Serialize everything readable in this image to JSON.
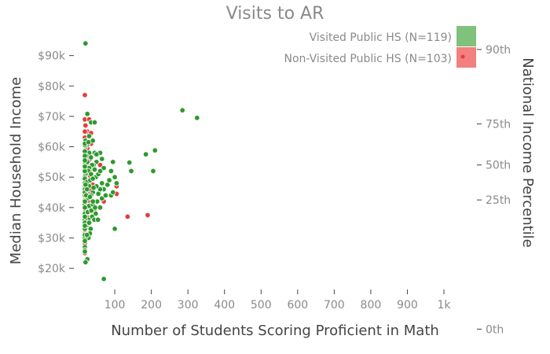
{
  "chart_data": {
    "type": "scatter",
    "title": "Visits to AR",
    "xlabel": "Number of Students Scoring Proficient in Math",
    "ylabel": "Median Household Income",
    "y2label": "National Income Percentile",
    "xlim": [
      -20,
      1000
    ],
    "ylim": [
      12000,
      100000
    ],
    "x_ticks": [
      100,
      200,
      300,
      400,
      500,
      600,
      700,
      800,
      900,
      1000
    ],
    "x_tick_labels": [
      "100",
      "200",
      "300",
      "400",
      "500",
      "600",
      "700",
      "800",
      "900",
      "1k"
    ],
    "y_ticks": [
      20000,
      30000,
      40000,
      50000,
      60000,
      70000,
      80000,
      90000
    ],
    "y_tick_labels": [
      "$20k",
      "$30k",
      "$40k",
      "$50k",
      "$60k",
      "$70k",
      "$80k",
      "$90k"
    ],
    "y2_ticks": [
      0,
      25,
      50,
      75,
      90
    ],
    "y2_tick_values": [
      0,
      42500,
      54000,
      67500,
      92000
    ],
    "y2_tick_labels": [
      "0th",
      "25th",
      "50th",
      "75th",
      "90th"
    ],
    "grid": false,
    "legend_position": "top-right",
    "series": [
      {
        "name": "Visited Public HS (N=119)",
        "color": "#2e9a2e",
        "legend_color": "#80c17c",
        "points": [
          [
            20,
            94000
          ],
          [
            25,
            70800
          ],
          [
            35,
            68000
          ],
          [
            45,
            68000
          ],
          [
            30,
            63500
          ],
          [
            20,
            62000
          ],
          [
            25,
            60700
          ],
          [
            5,
            60500
          ],
          [
            15,
            61000
          ],
          [
            40,
            62000
          ],
          [
            60,
            58000
          ],
          [
            65,
            56000
          ],
          [
            45,
            58000
          ],
          [
            30,
            58000
          ],
          [
            22,
            57000
          ],
          [
            18,
            58500
          ],
          [
            10,
            57000
          ],
          [
            8,
            55000
          ],
          [
            50,
            55000
          ],
          [
            42,
            54000
          ],
          [
            38,
            54000
          ],
          [
            30,
            53000
          ],
          [
            28,
            52000
          ],
          [
            20,
            51000
          ],
          [
            15,
            50000
          ],
          [
            10,
            49500
          ],
          [
            6,
            48000
          ],
          [
            25,
            48500
          ],
          [
            33,
            49000
          ],
          [
            48,
            50000
          ],
          [
            55,
            51000
          ],
          [
            70,
            53000
          ],
          [
            90,
            52000
          ],
          [
            95,
            55000
          ],
          [
            140,
            54800
          ],
          [
            145,
            52000
          ],
          [
            100,
            50000
          ],
          [
            105,
            48000
          ],
          [
            80,
            47500
          ],
          [
            70,
            46000
          ],
          [
            60,
            46000
          ],
          [
            50,
            47000
          ],
          [
            40,
            45000
          ],
          [
            35,
            44000
          ],
          [
            26,
            43000
          ],
          [
            20,
            45000
          ],
          [
            12,
            46000
          ],
          [
            8,
            44000
          ],
          [
            5,
            42000
          ],
          [
            15,
            41000
          ],
          [
            22,
            40000
          ],
          [
            30,
            40500
          ],
          [
            40,
            41000
          ],
          [
            52,
            42000
          ],
          [
            65,
            43000
          ],
          [
            75,
            44000
          ],
          [
            90,
            44000
          ],
          [
            95,
            45000
          ],
          [
            60,
            40000
          ],
          [
            48,
            38000
          ],
          [
            38,
            37000
          ],
          [
            28,
            36000
          ],
          [
            20,
            38000
          ],
          [
            10,
            38000
          ],
          [
            6,
            36000
          ],
          [
            14,
            35000
          ],
          [
            22,
            34000
          ],
          [
            34,
            33000
          ],
          [
            44,
            36000
          ],
          [
            54,
            36000
          ],
          [
            32,
            31500
          ],
          [
            28,
            30000
          ],
          [
            18,
            30000
          ],
          [
            10,
            31000
          ],
          [
            5,
            29000
          ],
          [
            6,
            27000
          ],
          [
            8,
            26000
          ],
          [
            16,
            25500
          ],
          [
            25,
            23000
          ],
          [
            20,
            22000
          ],
          [
            70,
            16500
          ],
          [
            100,
            33000
          ],
          [
            185,
            57500
          ],
          [
            210,
            58800
          ],
          [
            205,
            52000
          ],
          [
            285,
            72000
          ],
          [
            325,
            69500
          ],
          [
            15,
            52000
          ],
          [
            25,
            55000
          ],
          [
            35,
            51000
          ],
          [
            45,
            52500
          ],
          [
            12,
            53500
          ],
          [
            30,
            47000
          ],
          [
            20,
            47500
          ],
          [
            42,
            46500
          ],
          [
            55,
            44500
          ],
          [
            10,
            40000
          ],
          [
            18,
            42000
          ],
          [
            26,
            38500
          ],
          [
            36,
            39000
          ],
          [
            46,
            40000
          ],
          [
            30,
            35000
          ],
          [
            15,
            33000
          ],
          [
            24,
            31000
          ],
          [
            40,
            42000
          ],
          [
            65,
            48000
          ],
          [
            85,
            49000
          ],
          [
            12,
            45000
          ],
          [
            22,
            44000
          ],
          [
            32,
            43500
          ],
          [
            16,
            37000
          ],
          [
            8,
            34000
          ],
          [
            35,
            56500
          ],
          [
            50,
            57500
          ],
          [
            28,
            61500
          ],
          [
            18,
            55500
          ],
          [
            40,
            49500
          ],
          [
            60,
            52000
          ],
          [
            24,
            46000
          ]
        ]
      },
      {
        "name": "Non-Visited Public HS (N=103)",
        "color": "#e23d3d",
        "legend_color": "#f28080",
        "points": [
          [
            15,
            77000
          ],
          [
            10,
            69000
          ],
          [
            30,
            69000
          ],
          [
            25,
            65000
          ],
          [
            15,
            65000
          ],
          [
            35,
            64500
          ],
          [
            10,
            63000
          ],
          [
            20,
            62000
          ],
          [
            5,
            61000
          ],
          [
            25,
            59500
          ],
          [
            15,
            58000
          ],
          [
            30,
            57500
          ],
          [
            10,
            57000
          ],
          [
            20,
            56500
          ],
          [
            5,
            56000
          ],
          [
            25,
            55000
          ],
          [
            15,
            54500
          ],
          [
            35,
            54000
          ],
          [
            8,
            53500
          ],
          [
            18,
            53000
          ],
          [
            28,
            52500
          ],
          [
            6,
            52000
          ],
          [
            12,
            51500
          ],
          [
            22,
            51000
          ],
          [
            32,
            50500
          ],
          [
            5,
            50000
          ],
          [
            14,
            49500
          ],
          [
            24,
            49000
          ],
          [
            34,
            48500
          ],
          [
            8,
            48000
          ],
          [
            16,
            47500
          ],
          [
            26,
            47000
          ],
          [
            6,
            46500
          ],
          [
            12,
            46000
          ],
          [
            20,
            45500
          ],
          [
            30,
            45000
          ],
          [
            5,
            44500
          ],
          [
            10,
            44000
          ],
          [
            18,
            43500
          ],
          [
            28,
            43000
          ],
          [
            7,
            42500
          ],
          [
            14,
            42000
          ],
          [
            22,
            41500
          ],
          [
            32,
            41000
          ],
          [
            5,
            40500
          ],
          [
            12,
            40000
          ],
          [
            20,
            39500
          ],
          [
            6,
            39000
          ],
          [
            15,
            38500
          ],
          [
            25,
            38000
          ],
          [
            8,
            37500
          ],
          [
            18,
            37000
          ],
          [
            5,
            36500
          ],
          [
            12,
            36000
          ],
          [
            22,
            35500
          ],
          [
            6,
            35000
          ],
          [
            14,
            34500
          ],
          [
            5,
            34000
          ],
          [
            10,
            33500
          ],
          [
            18,
            33000
          ],
          [
            6,
            32500
          ],
          [
            12,
            32000
          ],
          [
            5,
            31500
          ],
          [
            8,
            31000
          ],
          [
            14,
            30500
          ],
          [
            5,
            30000
          ],
          [
            10,
            29500
          ],
          [
            6,
            29000
          ],
          [
            5,
            27000
          ],
          [
            4,
            25000
          ],
          [
            105,
            47000
          ],
          [
            105,
            44500
          ],
          [
            135,
            37000
          ],
          [
            190,
            37500
          ],
          [
            60,
            54000
          ],
          [
            50,
            50000
          ],
          [
            40,
            47500
          ],
          [
            70,
            42000
          ],
          [
            45,
            39500
          ],
          [
            20,
            60000
          ],
          [
            35,
            61000
          ],
          [
            10,
            55000
          ],
          [
            28,
            48000
          ],
          [
            18,
            44800
          ],
          [
            8,
            41200
          ],
          [
            24,
            36800
          ],
          [
            16,
            34200
          ],
          [
            30,
            31000
          ],
          [
            12,
            28300
          ],
          [
            40,
            52800
          ],
          [
            9,
            58500
          ],
          [
            22,
            53800
          ],
          [
            36,
            45800
          ],
          [
            14,
            39600
          ],
          [
            26,
            33600
          ],
          [
            20,
            67000
          ],
          [
            7,
            47000
          ],
          [
            17,
            49800
          ],
          [
            27,
            42300
          ],
          [
            11,
            37900
          ],
          [
            21,
            30200
          ],
          [
            31,
            55800
          ],
          [
            6,
            43600
          ]
        ]
      }
    ]
  }
}
